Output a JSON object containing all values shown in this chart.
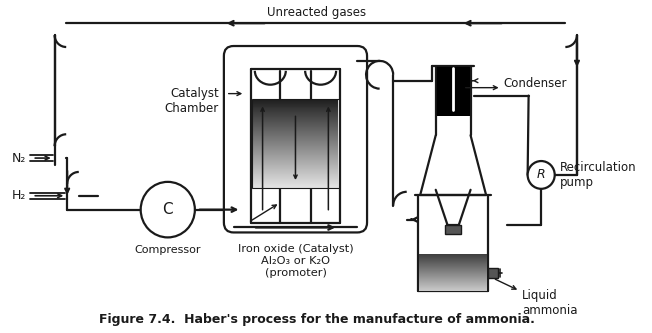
{
  "title": "Figure 7.4.  Haber's process for the manufacture of ammonia.",
  "title_fontsize": 9,
  "bg_color": "#ffffff",
  "text_color": "#1a1a1a",
  "unreacted_gases_label": "Unreacted gases",
  "condenser_label": "Condenser",
  "recirculation_label": "Recirculation\npump",
  "catalyst_chamber_label": "Catalyst\nChamber",
  "compressor_label": "Compressor",
  "iron_oxide_label": "Iron oxide (Catalyst)\nAl₂O₃ or K₂O\n(promoter)",
  "liquid_ammonia_label": "Liquid\nammonia",
  "n2_label": "N₂",
  "h2_label": "H₂",
  "c_label": "C",
  "r_label": "R"
}
